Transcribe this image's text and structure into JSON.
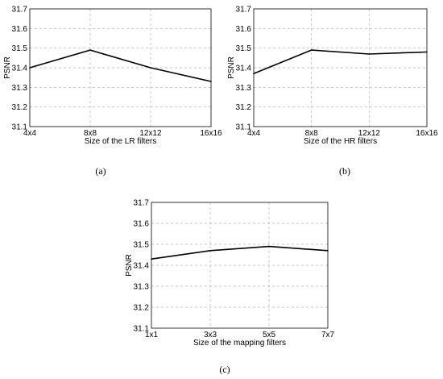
{
  "chart_data": [
    {
      "type": "line",
      "panel": "(a)",
      "categories": [
        "4x4",
        "8x8",
        "12x12",
        "16x16"
      ],
      "values": [
        31.4,
        31.49,
        31.4,
        31.33
      ],
      "xlabel": "Size of the LR filters",
      "ylabel": "PSNR",
      "ylim": [
        31.1,
        31.7
      ],
      "yticks": [
        "31.1",
        "31.2",
        "31.3",
        "31.4",
        "31.5",
        "31.6",
        "31.7"
      ],
      "grid": true
    },
    {
      "type": "line",
      "panel": "(b)",
      "categories": [
        "4x4",
        "8x8",
        "12x12",
        "16x16"
      ],
      "values": [
        31.37,
        31.49,
        31.47,
        31.48
      ],
      "xlabel": "Size of the HR filters",
      "ylabel": "PSNR",
      "ylim": [
        31.1,
        31.7
      ],
      "yticks": [
        "31.1",
        "31.2",
        "31.3",
        "31.4",
        "31.5",
        "31.6",
        "31.7"
      ],
      "grid": true
    },
    {
      "type": "line",
      "panel": "(c)",
      "categories": [
        "1x1",
        "3x3",
        "5x5",
        "7x7"
      ],
      "values": [
        31.43,
        31.47,
        31.49,
        31.47
      ],
      "xlabel": "Size of the mapping filters",
      "ylabel": "PSNR",
      "ylim": [
        31.1,
        31.7
      ],
      "yticks": [
        "31.1",
        "31.2",
        "31.3",
        "31.4",
        "31.5",
        "31.6",
        "31.7"
      ],
      "grid": true
    }
  ]
}
